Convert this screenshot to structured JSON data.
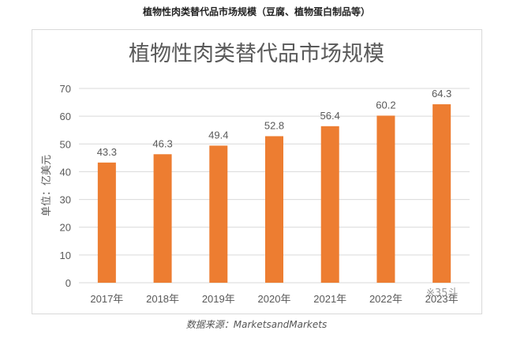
{
  "header": {
    "caption": "植物性肉类替代品市场规模（豆腐、植物蛋白制品等）"
  },
  "footer": {
    "source": "数据来源：MarketsandMarkets"
  },
  "watermark": {
    "text": "※35斗"
  },
  "colors": {
    "bar": "#ED7D31",
    "grid": "#d9d9d9",
    "axis_text": "#595959"
  },
  "chart_data": {
    "type": "bar",
    "title": "植物性肉类替代品市场规模",
    "xlabel": "",
    "ylabel": "单位：亿美元",
    "categories": [
      "2017年",
      "2018年",
      "2019年",
      "2020年",
      "2021年",
      "2022年",
      "2023年"
    ],
    "values": [
      43.3,
      46.3,
      49.4,
      52.8,
      56.4,
      60.2,
      64.3
    ],
    "data_labels": [
      "43.3",
      "46.3",
      "49.4",
      "52.8",
      "56.4",
      "60.2",
      "64.3"
    ],
    "yticks": [
      0,
      10,
      20,
      30,
      40,
      50,
      60,
      70
    ],
    "ylim": [
      0,
      70
    ],
    "grid": true,
    "legend": "none"
  }
}
